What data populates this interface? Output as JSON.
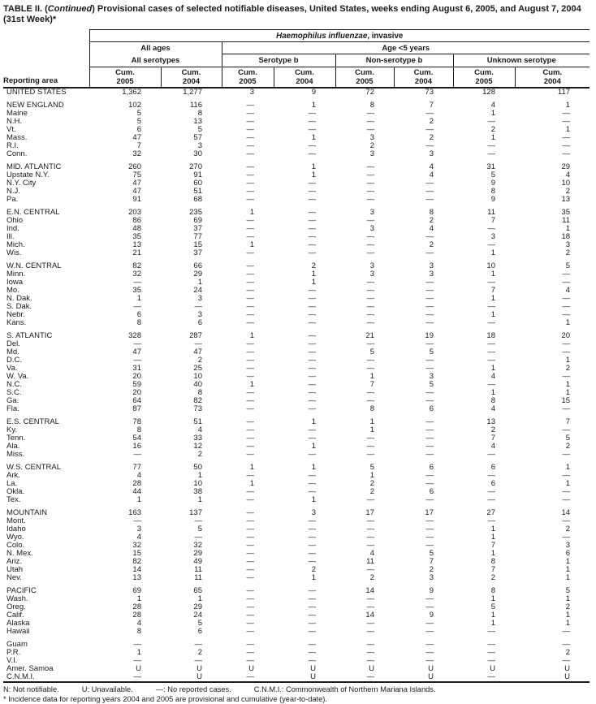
{
  "title": {
    "prefix": "TABLE II. (",
    "continued": "Continued",
    "suffix": ") Provisional cases of selected notifiable diseases, United States, weeks ending August 6, 2005, and August 7, 2004 (31st Week)*"
  },
  "table": {
    "reporting_area_label": "Reporting area",
    "disease_italic": "Haemophilus influenzae",
    "disease_suffix": ", invasive",
    "group_all_ages": "All ages",
    "group_age_under_5": "Age <5 years",
    "subgroups": [
      "All serotypes",
      "Serotype b",
      "Non-serotype b",
      "Unknown serotype"
    ],
    "cum_label": "Cum.",
    "col_years": [
      "2005",
      "2004",
      "2005",
      "2004",
      "2005",
      "2004",
      "2005",
      "2004"
    ],
    "sections": [
      {
        "rows": [
          {
            "area": "UNITED STATES",
            "values": [
              "1,362",
              "1,277",
              "3",
              "9",
              "72",
              "73",
              "128",
              "117"
            ]
          }
        ]
      },
      {
        "rows": [
          {
            "area": "NEW ENGLAND",
            "values": [
              "102",
              "116",
              "—",
              "1",
              "8",
              "7",
              "4",
              "1"
            ]
          },
          {
            "area": "Maine",
            "values": [
              "5",
              "8",
              "—",
              "—",
              "—",
              "—",
              "1",
              "—"
            ]
          },
          {
            "area": "N.H.",
            "values": [
              "5",
              "13",
              "—",
              "—",
              "—",
              "2",
              "—",
              "—"
            ]
          },
          {
            "area": "Vt.",
            "values": [
              "6",
              "5",
              "—",
              "—",
              "—",
              "—",
              "2",
              "1"
            ]
          },
          {
            "area": "Mass.",
            "values": [
              "47",
              "57",
              "—",
              "1",
              "3",
              "2",
              "1",
              "—"
            ]
          },
          {
            "area": "R.I.",
            "values": [
              "7",
              "3",
              "—",
              "—",
              "2",
              "—",
              "—",
              "—"
            ]
          },
          {
            "area": "Conn.",
            "values": [
              "32",
              "30",
              "—",
              "—",
              "3",
              "3",
              "—",
              "—"
            ]
          }
        ]
      },
      {
        "rows": [
          {
            "area": "MID. ATLANTIC",
            "values": [
              "260",
              "270",
              "—",
              "1",
              "—",
              "4",
              "31",
              "29"
            ]
          },
          {
            "area": "Upstate N.Y.",
            "values": [
              "75",
              "91",
              "—",
              "1",
              "—",
              "4",
              "5",
              "4"
            ]
          },
          {
            "area": "N.Y. City",
            "values": [
              "47",
              "60",
              "—",
              "—",
              "—",
              "—",
              "9",
              "10"
            ]
          },
          {
            "area": "N.J.",
            "values": [
              "47",
              "51",
              "—",
              "—",
              "—",
              "—",
              "8",
              "2"
            ]
          },
          {
            "area": "Pa.",
            "values": [
              "91",
              "68",
              "—",
              "—",
              "—",
              "—",
              "9",
              "13"
            ]
          }
        ]
      },
      {
        "rows": [
          {
            "area": "E.N. CENTRAL",
            "values": [
              "203",
              "235",
              "1",
              "—",
              "3",
              "8",
              "11",
              "35"
            ]
          },
          {
            "area": "Ohio",
            "values": [
              "86",
              "69",
              "—",
              "—",
              "—",
              "2",
              "7",
              "11"
            ]
          },
          {
            "area": "Ind.",
            "values": [
              "48",
              "37",
              "—",
              "—",
              "3",
              "4",
              "—",
              "1"
            ]
          },
          {
            "area": "Ill.",
            "values": [
              "35",
              "77",
              "—",
              "—",
              "—",
              "—",
              "3",
              "18"
            ]
          },
          {
            "area": "Mich.",
            "values": [
              "13",
              "15",
              "1",
              "—",
              "—",
              "2",
              "—",
              "3"
            ]
          },
          {
            "area": "Wis.",
            "values": [
              "21",
              "37",
              "—",
              "—",
              "—",
              "—",
              "1",
              "2"
            ]
          }
        ]
      },
      {
        "rows": [
          {
            "area": "W.N. CENTRAL",
            "values": [
              "82",
              "66",
              "—",
              "2",
              "3",
              "3",
              "10",
              "5"
            ]
          },
          {
            "area": "Minn.",
            "values": [
              "32",
              "29",
              "—",
              "1",
              "3",
              "3",
              "1",
              "—"
            ]
          },
          {
            "area": "Iowa",
            "values": [
              "—",
              "1",
              "—",
              "1",
              "—",
              "—",
              "—",
              "—"
            ]
          },
          {
            "area": "Mo.",
            "values": [
              "35",
              "24",
              "—",
              "—",
              "—",
              "—",
              "7",
              "4"
            ]
          },
          {
            "area": "N. Dak.",
            "values": [
              "1",
              "3",
              "—",
              "—",
              "—",
              "—",
              "1",
              "—"
            ]
          },
          {
            "area": "S. Dak.",
            "values": [
              "—",
              "—",
              "—",
              "—",
              "—",
              "—",
              "—",
              "—"
            ]
          },
          {
            "area": "Nebr.",
            "values": [
              "6",
              "3",
              "—",
              "—",
              "—",
              "—",
              "1",
              "—"
            ]
          },
          {
            "area": "Kans.",
            "values": [
              "8",
              "6",
              "—",
              "—",
              "—",
              "—",
              "—",
              "1"
            ]
          }
        ]
      },
      {
        "rows": [
          {
            "area": "S. ATLANTIC",
            "values": [
              "328",
              "287",
              "1",
              "—",
              "21",
              "19",
              "18",
              "20"
            ]
          },
          {
            "area": "Del.",
            "values": [
              "—",
              "—",
              "—",
              "—",
              "—",
              "—",
              "—",
              "—"
            ]
          },
          {
            "area": "Md.",
            "values": [
              "47",
              "47",
              "—",
              "—",
              "5",
              "5",
              "—",
              "—"
            ]
          },
          {
            "area": "D.C.",
            "values": [
              "—",
              "2",
              "—",
              "—",
              "—",
              "—",
              "—",
              "1"
            ]
          },
          {
            "area": "Va.",
            "values": [
              "31",
              "25",
              "—",
              "—",
              "—",
              "—",
              "1",
              "2"
            ]
          },
          {
            "area": "W. Va.",
            "values": [
              "20",
              "10",
              "—",
              "—",
              "1",
              "3",
              "4",
              "—"
            ]
          },
          {
            "area": "N.C.",
            "values": [
              "59",
              "40",
              "1",
              "—",
              "7",
              "5",
              "—",
              "1"
            ]
          },
          {
            "area": "S.C.",
            "values": [
              "20",
              "8",
              "—",
              "—",
              "—",
              "—",
              "1",
              "1"
            ]
          },
          {
            "area": "Ga.",
            "values": [
              "64",
              "82",
              "—",
              "—",
              "—",
              "—",
              "8",
              "15"
            ]
          },
          {
            "area": "Fla.",
            "values": [
              "87",
              "73",
              "—",
              "—",
              "8",
              "6",
              "4",
              "—"
            ]
          }
        ]
      },
      {
        "rows": [
          {
            "area": "E.S. CENTRAL",
            "values": [
              "78",
              "51",
              "—",
              "1",
              "1",
              "—",
              "13",
              "7"
            ]
          },
          {
            "area": "Ky.",
            "values": [
              "8",
              "4",
              "—",
              "—",
              "1",
              "—",
              "2",
              "—"
            ]
          },
          {
            "area": "Tenn.",
            "values": [
              "54",
              "33",
              "—",
              "—",
              "—",
              "—",
              "7",
              "5"
            ]
          },
          {
            "area": "Ala.",
            "values": [
              "16",
              "12",
              "—",
              "1",
              "—",
              "—",
              "4",
              "2"
            ]
          },
          {
            "area": "Miss.",
            "values": [
              "—",
              "2",
              "—",
              "—",
              "—",
              "—",
              "—",
              "—"
            ]
          }
        ]
      },
      {
        "rows": [
          {
            "area": "W.S. CENTRAL",
            "values": [
              "77",
              "50",
              "1",
              "1",
              "5",
              "6",
              "6",
              "1"
            ]
          },
          {
            "area": "Ark.",
            "values": [
              "4",
              "1",
              "—",
              "—",
              "1",
              "—",
              "—",
              "—"
            ]
          },
          {
            "area": "La.",
            "values": [
              "28",
              "10",
              "1",
              "—",
              "2",
              "—",
              "6",
              "1"
            ]
          },
          {
            "area": "Okla.",
            "values": [
              "44",
              "38",
              "—",
              "—",
              "2",
              "6",
              "—",
              "—"
            ]
          },
          {
            "area": "Tex.",
            "values": [
              "1",
              "1",
              "—",
              "1",
              "—",
              "—",
              "—",
              "—"
            ]
          }
        ]
      },
      {
        "rows": [
          {
            "area": "MOUNTAIN",
            "values": [
              "163",
              "137",
              "—",
              "3",
              "17",
              "17",
              "27",
              "14"
            ]
          },
          {
            "area": "Mont.",
            "values": [
              "—",
              "—",
              "—",
              "—",
              "—",
              "—",
              "—",
              "—"
            ]
          },
          {
            "area": "Idaho",
            "values": [
              "3",
              "5",
              "—",
              "—",
              "—",
              "—",
              "1",
              "2"
            ]
          },
          {
            "area": "Wyo.",
            "values": [
              "4",
              "—",
              "—",
              "—",
              "—",
              "—",
              "1",
              "—"
            ]
          },
          {
            "area": "Colo.",
            "values": [
              "32",
              "32",
              "—",
              "—",
              "—",
              "—",
              "7",
              "3"
            ]
          },
          {
            "area": "N. Mex.",
            "values": [
              "15",
              "29",
              "—",
              "—",
              "4",
              "5",
              "1",
              "6"
            ]
          },
          {
            "area": "Ariz.",
            "values": [
              "82",
              "49",
              "—",
              "—",
              "11",
              "7",
              "8",
              "1"
            ]
          },
          {
            "area": "Utah",
            "values": [
              "14",
              "11",
              "—",
              "2",
              "—",
              "2",
              "7",
              "1"
            ]
          },
          {
            "area": "Nev.",
            "values": [
              "13",
              "11",
              "—",
              "1",
              "2",
              "3",
              "2",
              "1"
            ]
          }
        ]
      },
      {
        "rows": [
          {
            "area": "PACIFIC",
            "values": [
              "69",
              "65",
              "—",
              "—",
              "14",
              "9",
              "8",
              "5"
            ]
          },
          {
            "area": "Wash.",
            "values": [
              "1",
              "1",
              "—",
              "—",
              "—",
              "—",
              "1",
              "1"
            ]
          },
          {
            "area": "Oreg.",
            "values": [
              "28",
              "29",
              "—",
              "—",
              "—",
              "—",
              "5",
              "2"
            ]
          },
          {
            "area": "Calif.",
            "values": [
              "28",
              "24",
              "—",
              "—",
              "14",
              "9",
              "1",
              "1"
            ]
          },
          {
            "area": "Alaska",
            "values": [
              "4",
              "5",
              "—",
              "—",
              "—",
              "—",
              "1",
              "1"
            ]
          },
          {
            "area": "Hawaii",
            "values": [
              "8",
              "6",
              "—",
              "—",
              "—",
              "—",
              "—",
              "—"
            ]
          }
        ]
      },
      {
        "rows": [
          {
            "area": "Guam",
            "values": [
              "—",
              "—",
              "—",
              "—",
              "—",
              "—",
              "—",
              "—"
            ]
          },
          {
            "area": "P.R.",
            "values": [
              "1",
              "2",
              "—",
              "—",
              "—",
              "—",
              "—",
              "2"
            ]
          },
          {
            "area": "V.I.",
            "values": [
              "—",
              "—",
              "—",
              "—",
              "—",
              "—",
              "—",
              "—"
            ]
          },
          {
            "area": "Amer. Samoa",
            "values": [
              "U",
              "U",
              "U",
              "U",
              "U",
              "U",
              "U",
              "U"
            ]
          },
          {
            "area": "C.N.M.I.",
            "values": [
              "—",
              "U",
              "—",
              "U",
              "—",
              "U",
              "—",
              "U"
            ]
          }
        ]
      }
    ]
  },
  "footnotes": {
    "legend": [
      "N: Not notifiable.",
      "U: Unavailable.",
      "—: No reported cases.",
      "C.N.M.I.: Commonwealth of Northern Mariana Islands."
    ],
    "note": "* Incidence data for reporting years 2004 and 2005 are provisional and cumulative (year-to-date)."
  }
}
